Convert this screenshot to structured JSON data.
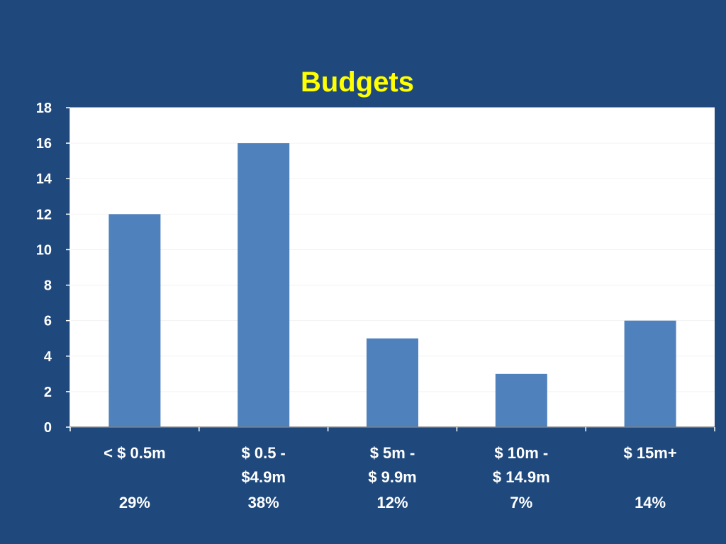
{
  "colors": {
    "background": "#1f497d",
    "title": "#ffff00",
    "plot_area": "#ffffff",
    "bar": "#4f81bd",
    "text": "#ffffff"
  },
  "chart_data": {
    "type": "bar",
    "title": "Budgets",
    "xlabel": "",
    "ylabel": "",
    "ylim": [
      0,
      18
    ],
    "yticks": [
      0,
      2,
      4,
      6,
      8,
      10,
      12,
      14,
      16,
      18
    ],
    "grid": false,
    "categories": [
      {
        "lines": [
          "< $ 0.5m"
        ],
        "percent": "29%"
      },
      {
        "lines": [
          "$ 0.5 -",
          "$4.9m"
        ],
        "percent": "38%"
      },
      {
        "lines": [
          "$ 5m -",
          "$ 9.9m"
        ],
        "percent": "12%"
      },
      {
        "lines": [
          "$ 10m -",
          "$ 14.9m"
        ],
        "percent": "7%"
      },
      {
        "lines": [
          "$ 15m+"
        ],
        "percent": "14%"
      }
    ],
    "values": [
      12,
      16,
      5,
      3,
      6
    ]
  }
}
